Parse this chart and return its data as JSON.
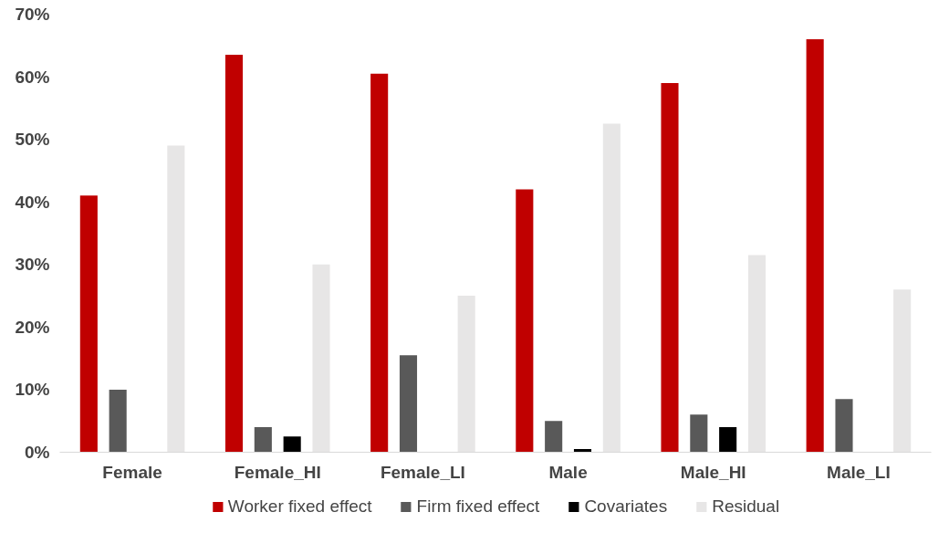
{
  "chart_data": {
    "type": "bar",
    "categories": [
      "Female",
      "Female_HI",
      "Female_LI",
      "Male",
      "Male_HI",
      "Male_LI"
    ],
    "series": [
      {
        "name": "Worker fixed effect",
        "color": "#c00000",
        "values": [
          41,
          63.5,
          60.5,
          42,
          59,
          66
        ]
      },
      {
        "name": "Firm fixed effect",
        "color": "#595959",
        "values": [
          10,
          4,
          15.5,
          5,
          6,
          8.5
        ]
      },
      {
        "name": "Covariates",
        "color": "#000000",
        "values": [
          0,
          2.5,
          0,
          0.5,
          4,
          0
        ]
      },
      {
        "name": "Residual",
        "color": "#e7e6e6",
        "values": [
          49,
          30,
          25,
          52.5,
          31.5,
          26
        ]
      }
    ],
    "ylim": [
      0,
      70
    ],
    "yticks": [
      {
        "value": 0,
        "label": "0%"
      },
      {
        "value": 10,
        "label": "10%"
      },
      {
        "value": 20,
        "label": "20%"
      },
      {
        "value": 30,
        "label": "30%"
      },
      {
        "value": 40,
        "label": "40%"
      },
      {
        "value": 50,
        "label": "50%"
      },
      {
        "value": 60,
        "label": "60%"
      },
      {
        "value": 70,
        "label": "70%"
      }
    ],
    "grid": false,
    "legend": "bottom"
  }
}
